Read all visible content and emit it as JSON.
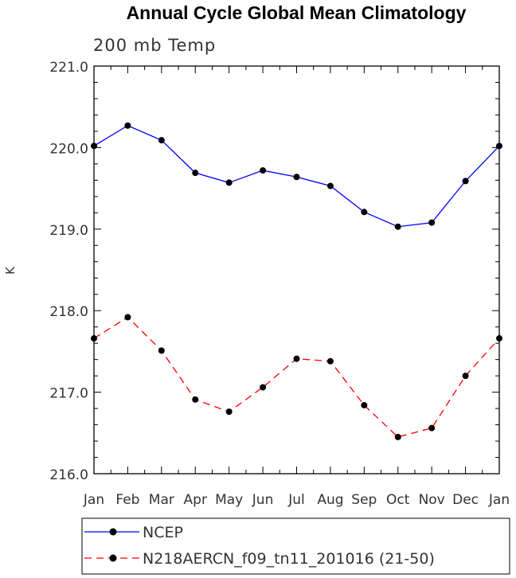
{
  "chart_data": {
    "type": "line",
    "title": "Annual Cycle Global Mean Climatology",
    "subtitle": "200 mb Temp",
    "xlabel": "",
    "ylabel": "K",
    "categories": [
      "Jan",
      "Feb",
      "Mar",
      "Apr",
      "May",
      "Jun",
      "Jul",
      "Aug",
      "Sep",
      "Oct",
      "Nov",
      "Dec",
      "Jan"
    ],
    "ylim": [
      216.0,
      221.0
    ],
    "yticks": [
      "216.0",
      "217.0",
      "218.0",
      "219.0",
      "220.0",
      "221.0"
    ],
    "series": [
      {
        "name": "NCEP",
        "color": "#0000ff",
        "dash": "solid",
        "marker": "filled-circle",
        "values": [
          220.02,
          220.27,
          220.09,
          219.69,
          219.57,
          219.72,
          219.64,
          219.53,
          219.21,
          219.03,
          219.08,
          219.59,
          220.02
        ]
      },
      {
        "name": "N218AERCN_f09_tn11_201016 (21-50)",
        "color": "#ff0000",
        "dash": "dashed",
        "marker": "filled-circle",
        "values": [
          217.66,
          217.92,
          217.51,
          216.91,
          216.76,
          217.06,
          217.41,
          217.38,
          216.84,
          216.45,
          216.56,
          217.2,
          217.66
        ]
      }
    ],
    "legend": "bottom",
    "grid": false
  }
}
